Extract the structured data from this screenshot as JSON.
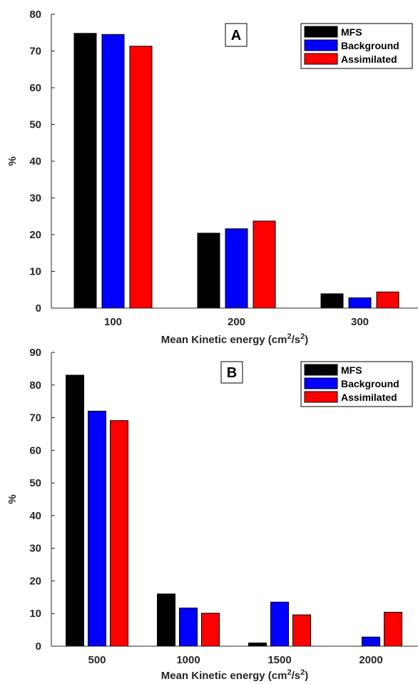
{
  "chart_data": [
    {
      "type": "bar",
      "panel_label": "A",
      "categories": [
        "100",
        "200",
        "300"
      ],
      "series": [
        {
          "name": "MFS",
          "color": "#000000",
          "values": [
            74.8,
            20.4,
            3.9
          ]
        },
        {
          "name": "Background",
          "color": "#0000ff",
          "values": [
            74.5,
            21.6,
            2.8
          ]
        },
        {
          "name": "Assimilated",
          "color": "#ff0000",
          "values": [
            71.3,
            23.7,
            4.4
          ]
        }
      ],
      "xlabel": "Mean Kinetic energy (cm",
      "xlabel_sup1": "2",
      "xlabel_mid": "/s",
      "xlabel_sup2": "2",
      "xlabel_end": ")",
      "ylabel": "%",
      "ylim": [
        0,
        80
      ],
      "yticks": [
        "0",
        "10",
        "20",
        "30",
        "40",
        "50",
        "60",
        "70",
        "80"
      ],
      "legend_position": "top-right",
      "grid": false
    },
    {
      "type": "bar",
      "panel_label": "B",
      "categories": [
        "500",
        "1000",
        "1500",
        "2000"
      ],
      "series": [
        {
          "name": "MFS",
          "color": "#000000",
          "values": [
            83.0,
            16.0,
            1.0,
            0
          ]
        },
        {
          "name": "Background",
          "color": "#0000ff",
          "values": [
            72.0,
            11.7,
            13.5,
            2.8
          ]
        },
        {
          "name": "Assimilated",
          "color": "#ff0000",
          "values": [
            69.1,
            10.1,
            9.6,
            10.4
          ]
        }
      ],
      "xlabel": "Mean Kinetic energy (cm",
      "xlabel_sup1": "2",
      "xlabel_mid": "/s",
      "xlabel_sup2": "2",
      "xlabel_end": ")",
      "ylabel": "%",
      "ylim": [
        0,
        90
      ],
      "yticks": [
        "0",
        "10",
        "20",
        "30",
        "40",
        "50",
        "60",
        "70",
        "80",
        "90"
      ],
      "legend_position": "top-right",
      "grid": false
    }
  ]
}
